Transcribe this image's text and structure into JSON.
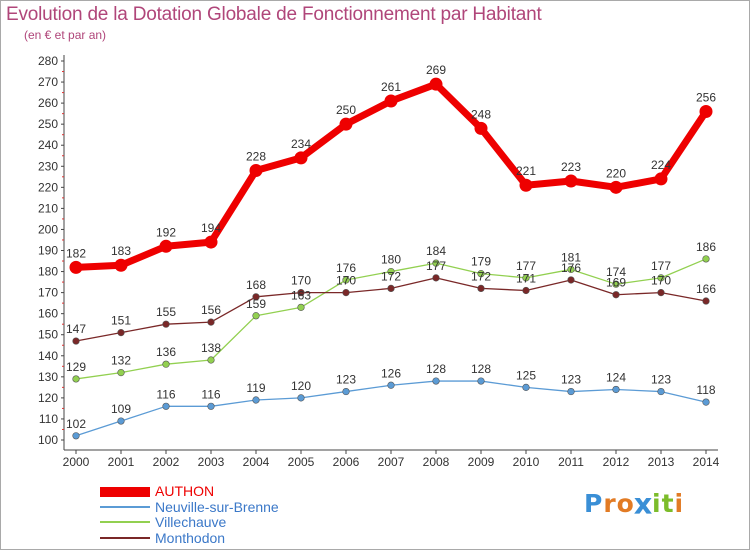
{
  "title": "Evolution de la Dotation Globale de Fonctionnement par Habitant",
  "subtitle": "(en € et par an)",
  "logo": {
    "text": "Proxiti",
    "letters": [
      {
        "ch": "P",
        "color": "#3a8fd6"
      },
      {
        "ch": "r",
        "color": "#e27b24"
      },
      {
        "ch": "o",
        "color": "#e27b24"
      },
      {
        "ch": "x",
        "color": "#3a8fd6"
      },
      {
        "ch": "i",
        "color": "#7cbc2a"
      },
      {
        "ch": "t",
        "color": "#7cbc2a"
      },
      {
        "ch": "i",
        "color": "#e27b24"
      }
    ]
  },
  "chart_data": {
    "type": "line",
    "title": "Evolution de la Dotation Globale de Fonctionnement par Habitant",
    "subtitle": "(en € et par an)",
    "x": [
      2000,
      2001,
      2002,
      2003,
      2004,
      2005,
      2006,
      2007,
      2008,
      2009,
      2010,
      2011,
      2012,
      2013,
      2014
    ],
    "ylim": [
      100,
      280
    ],
    "yticks": [
      100,
      110,
      120,
      130,
      140,
      150,
      160,
      170,
      180,
      190,
      200,
      210,
      220,
      230,
      240,
      250,
      260,
      270,
      280
    ],
    "grid": false,
    "legend": "bottom-left",
    "series": [
      {
        "name": "AUTHON",
        "color": "#ee0000",
        "values": [
          182,
          183,
          192,
          194,
          228,
          234,
          250,
          261,
          269,
          248,
          221,
          223,
          220,
          224,
          256
        ]
      },
      {
        "name": "Neuville-sur-Brenne",
        "color": "#5b9bd5",
        "values": [
          102,
          109,
          116,
          116,
          119,
          120,
          123,
          126,
          128,
          128,
          125,
          123,
          124,
          123,
          118
        ]
      },
      {
        "name": "Villechauve",
        "color": "#92d050",
        "values": [
          129,
          132,
          136,
          138,
          159,
          163,
          176,
          180,
          184,
          179,
          177,
          181,
          174,
          177,
          186
        ]
      },
      {
        "name": "Monthodon",
        "color": "#7a2828",
        "values": [
          147,
          151,
          155,
          156,
          168,
          170,
          170,
          172,
          177,
          172,
          171,
          176,
          169,
          170,
          166
        ]
      }
    ]
  }
}
